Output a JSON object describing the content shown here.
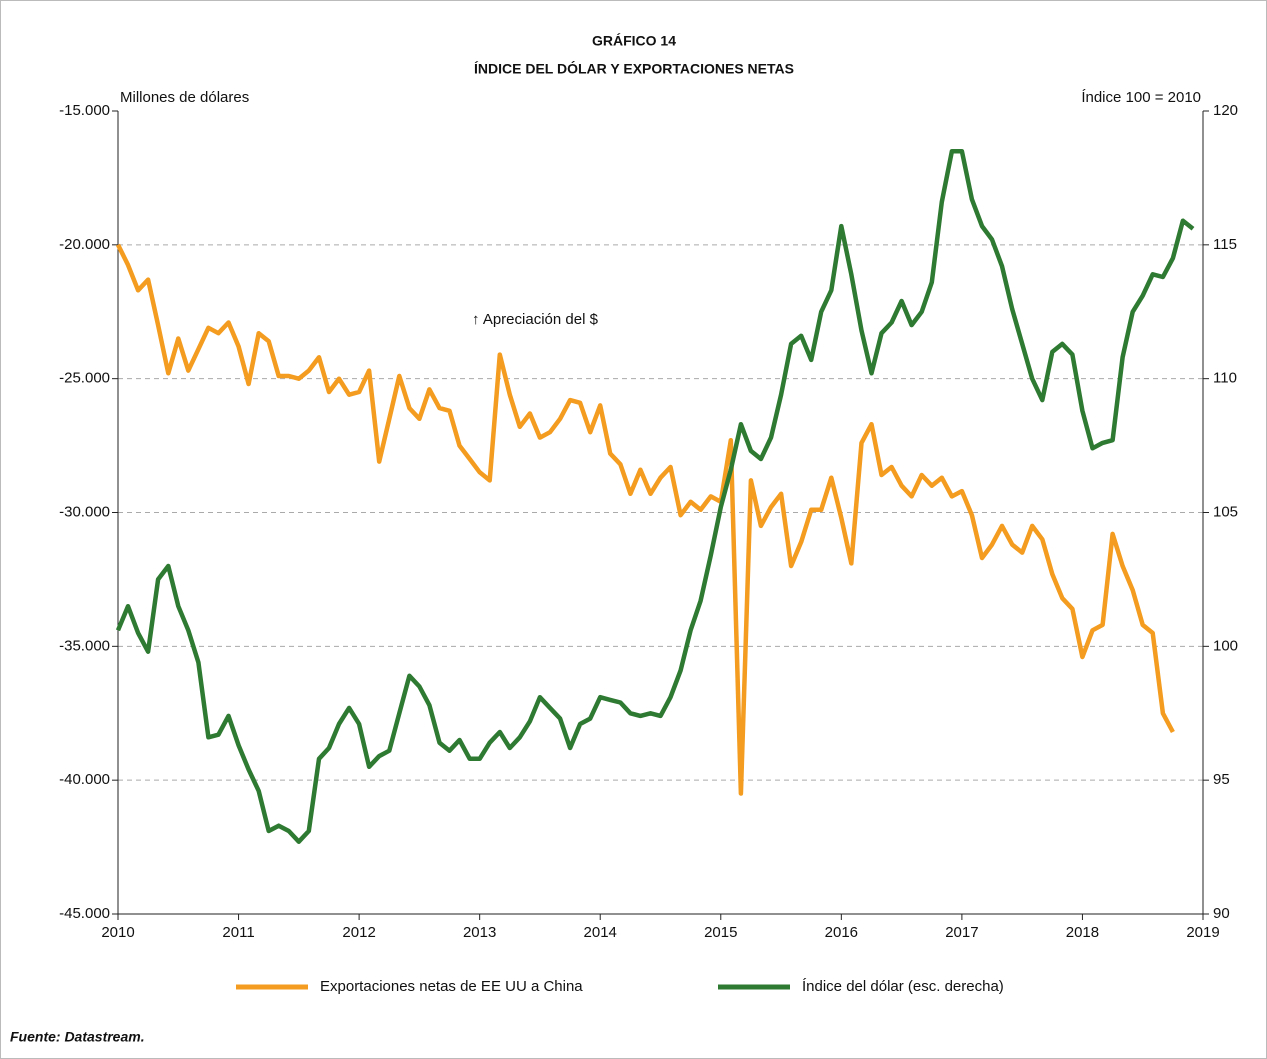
{
  "chart_data": {
    "type": "line",
    "title": "GRÁFICO 14",
    "subtitle": "ÍNDICE DEL DÓLAR Y EXPORTACIONES NETAS",
    "y_label": "Millones de dólares",
    "y2_label": "Índice 100 = 2010",
    "annotation": "↑ Apreciación del $",
    "source": "Fuente: Datastream.",
    "grid": true,
    "x": [
      2010,
      2010.083,
      2010.167,
      2010.25,
      2010.333,
      2010.417,
      2010.5,
      2010.583,
      2010.667,
      2010.75,
      2010.833,
      2010.917,
      2011,
      2011.083,
      2011.167,
      2011.25,
      2011.333,
      2011.417,
      2011.5,
      2011.583,
      2011.667,
      2011.75,
      2011.833,
      2011.917,
      2012,
      2012.083,
      2012.167,
      2012.25,
      2012.333,
      2012.417,
      2012.5,
      2012.583,
      2012.667,
      2012.75,
      2012.833,
      2012.917,
      2013,
      2013.083,
      2013.167,
      2013.25,
      2013.333,
      2013.417,
      2013.5,
      2013.583,
      2013.667,
      2013.75,
      2013.833,
      2013.917,
      2014,
      2014.083,
      2014.167,
      2014.25,
      2014.333,
      2014.417,
      2014.5,
      2014.583,
      2014.667,
      2014.75,
      2014.833,
      2014.917,
      2015,
      2015.083,
      2015.167,
      2015.25,
      2015.333,
      2015.417,
      2015.5,
      2015.583,
      2015.667,
      2015.75,
      2015.833,
      2015.917,
      2016,
      2016.083,
      2016.167,
      2016.25,
      2016.333,
      2016.417,
      2016.5,
      2016.583,
      2016.667,
      2016.75,
      2016.833,
      2016.917,
      2017,
      2017.083,
      2017.167,
      2017.25,
      2017.333,
      2017.417,
      2017.5,
      2017.583,
      2017.667,
      2017.75,
      2017.833,
      2017.917,
      2018,
      2018.083,
      2018.167,
      2018.25,
      2018.333,
      2018.417,
      2018.5,
      2018.583,
      2018.667,
      2018.75,
      2018.833,
      2018.917
    ],
    "xlim": [
      2010,
      2019
    ],
    "xticks": [
      2010,
      2011,
      2012,
      2013,
      2014,
      2015,
      2016,
      2017,
      2018,
      2019
    ],
    "ylim": [
      -45000,
      -15000
    ],
    "yticks": [
      {
        "value": -45000,
        "label": "-45.000"
      },
      {
        "value": -40000,
        "label": "-40.000"
      },
      {
        "value": -35000,
        "label": "-35.000"
      },
      {
        "value": -30000,
        "label": "-30.000"
      },
      {
        "value": -25000,
        "label": "-25.000"
      },
      {
        "value": -20000,
        "label": "-20.000"
      },
      {
        "value": -15000,
        "label": "-15.000"
      }
    ],
    "y2lim": [
      90,
      120
    ],
    "y2ticks": [
      90,
      95,
      100,
      105,
      110,
      115,
      120
    ],
    "series": [
      {
        "name": "Exportaciones netas de EE UU a China",
        "color": "#f39c1f",
        "values": [
          -20000,
          -20750,
          -21700,
          -21300,
          -23000,
          -24800,
          -23500,
          -24700,
          -23900,
          -23100,
          -23300,
          -22900,
          -23800,
          -25200,
          -23300,
          -23600,
          -24900,
          -24900,
          -25000,
          -24700,
          -24200,
          -25500,
          -25000,
          -25600,
          -25500,
          -24700,
          -28100,
          -26500,
          -24900,
          -26100,
          -26500,
          -25400,
          -26100,
          -26200,
          -27500,
          -28000,
          -28500,
          -28800,
          -24100,
          -25600,
          -26800,
          -26300,
          -27200,
          -27000,
          -26500,
          -25800,
          -25900,
          -27000,
          -26000,
          -27800,
          -28200,
          -29300,
          -28400,
          -29300,
          -28700,
          -28300,
          -30100,
          -29600,
          -29900,
          -29400,
          -29600,
          -27300,
          -40500,
          -28800,
          -30500,
          -29800,
          -29300,
          -32000,
          -31100,
          -29900,
          -29900,
          -28700,
          -30200,
          -31900,
          -27400,
          -26700,
          -28600,
          -28300,
          -29000,
          -29400,
          -28600,
          -29000,
          -28700,
          -29400,
          -29200,
          -30100,
          -31700,
          -31200,
          -30500,
          -31200,
          -31500,
          -30500,
          -31000,
          -32300,
          -33200,
          -33600,
          -35400,
          -34400,
          -34200,
          -30800,
          -32000,
          -32900,
          -34200,
          -34500,
          -37500,
          -38200,
          null,
          null
        ]
      },
      {
        "name": "Índice del dólar (esc. derecha)",
        "color": "#2f7a32",
        "axis": "y2",
        "values": [
          100.6,
          101.5,
          100.5,
          99.8,
          102.5,
          103.0,
          101.5,
          100.6,
          99.4,
          96.6,
          96.7,
          97.4,
          96.3,
          95.4,
          94.6,
          93.1,
          93.3,
          93.1,
          92.7,
          93.1,
          95.8,
          96.2,
          97.1,
          97.7,
          97.1,
          95.5,
          95.9,
          96.1,
          97.5,
          98.9,
          98.5,
          97.8,
          96.4,
          96.1,
          96.5,
          95.8,
          95.8,
          96.4,
          96.8,
          96.2,
          96.6,
          97.2,
          98.1,
          97.7,
          97.3,
          96.2,
          97.1,
          97.3,
          98.1,
          98.0,
          97.9,
          97.5,
          97.4,
          97.5,
          97.4,
          98.1,
          99.1,
          100.6,
          101.7,
          103.4,
          105.2,
          106.6,
          108.3,
          107.3,
          107.0,
          107.8,
          109.4,
          111.3,
          111.6,
          110.7,
          112.5,
          113.3,
          115.7,
          113.9,
          111.8,
          110.2,
          111.7,
          112.1,
          112.9,
          112.0,
          112.5,
          113.6,
          116.6,
          118.5,
          118.5,
          116.7,
          115.7,
          115.2,
          114.2,
          112.6,
          111.3,
          110.0,
          109.2,
          111.0,
          111.3,
          110.9,
          108.8,
          107.4,
          107.6,
          107.7,
          110.8,
          112.5,
          113.1,
          113.9,
          113.8,
          114.5,
          115.9,
          115.6
        ]
      }
    ]
  }
}
